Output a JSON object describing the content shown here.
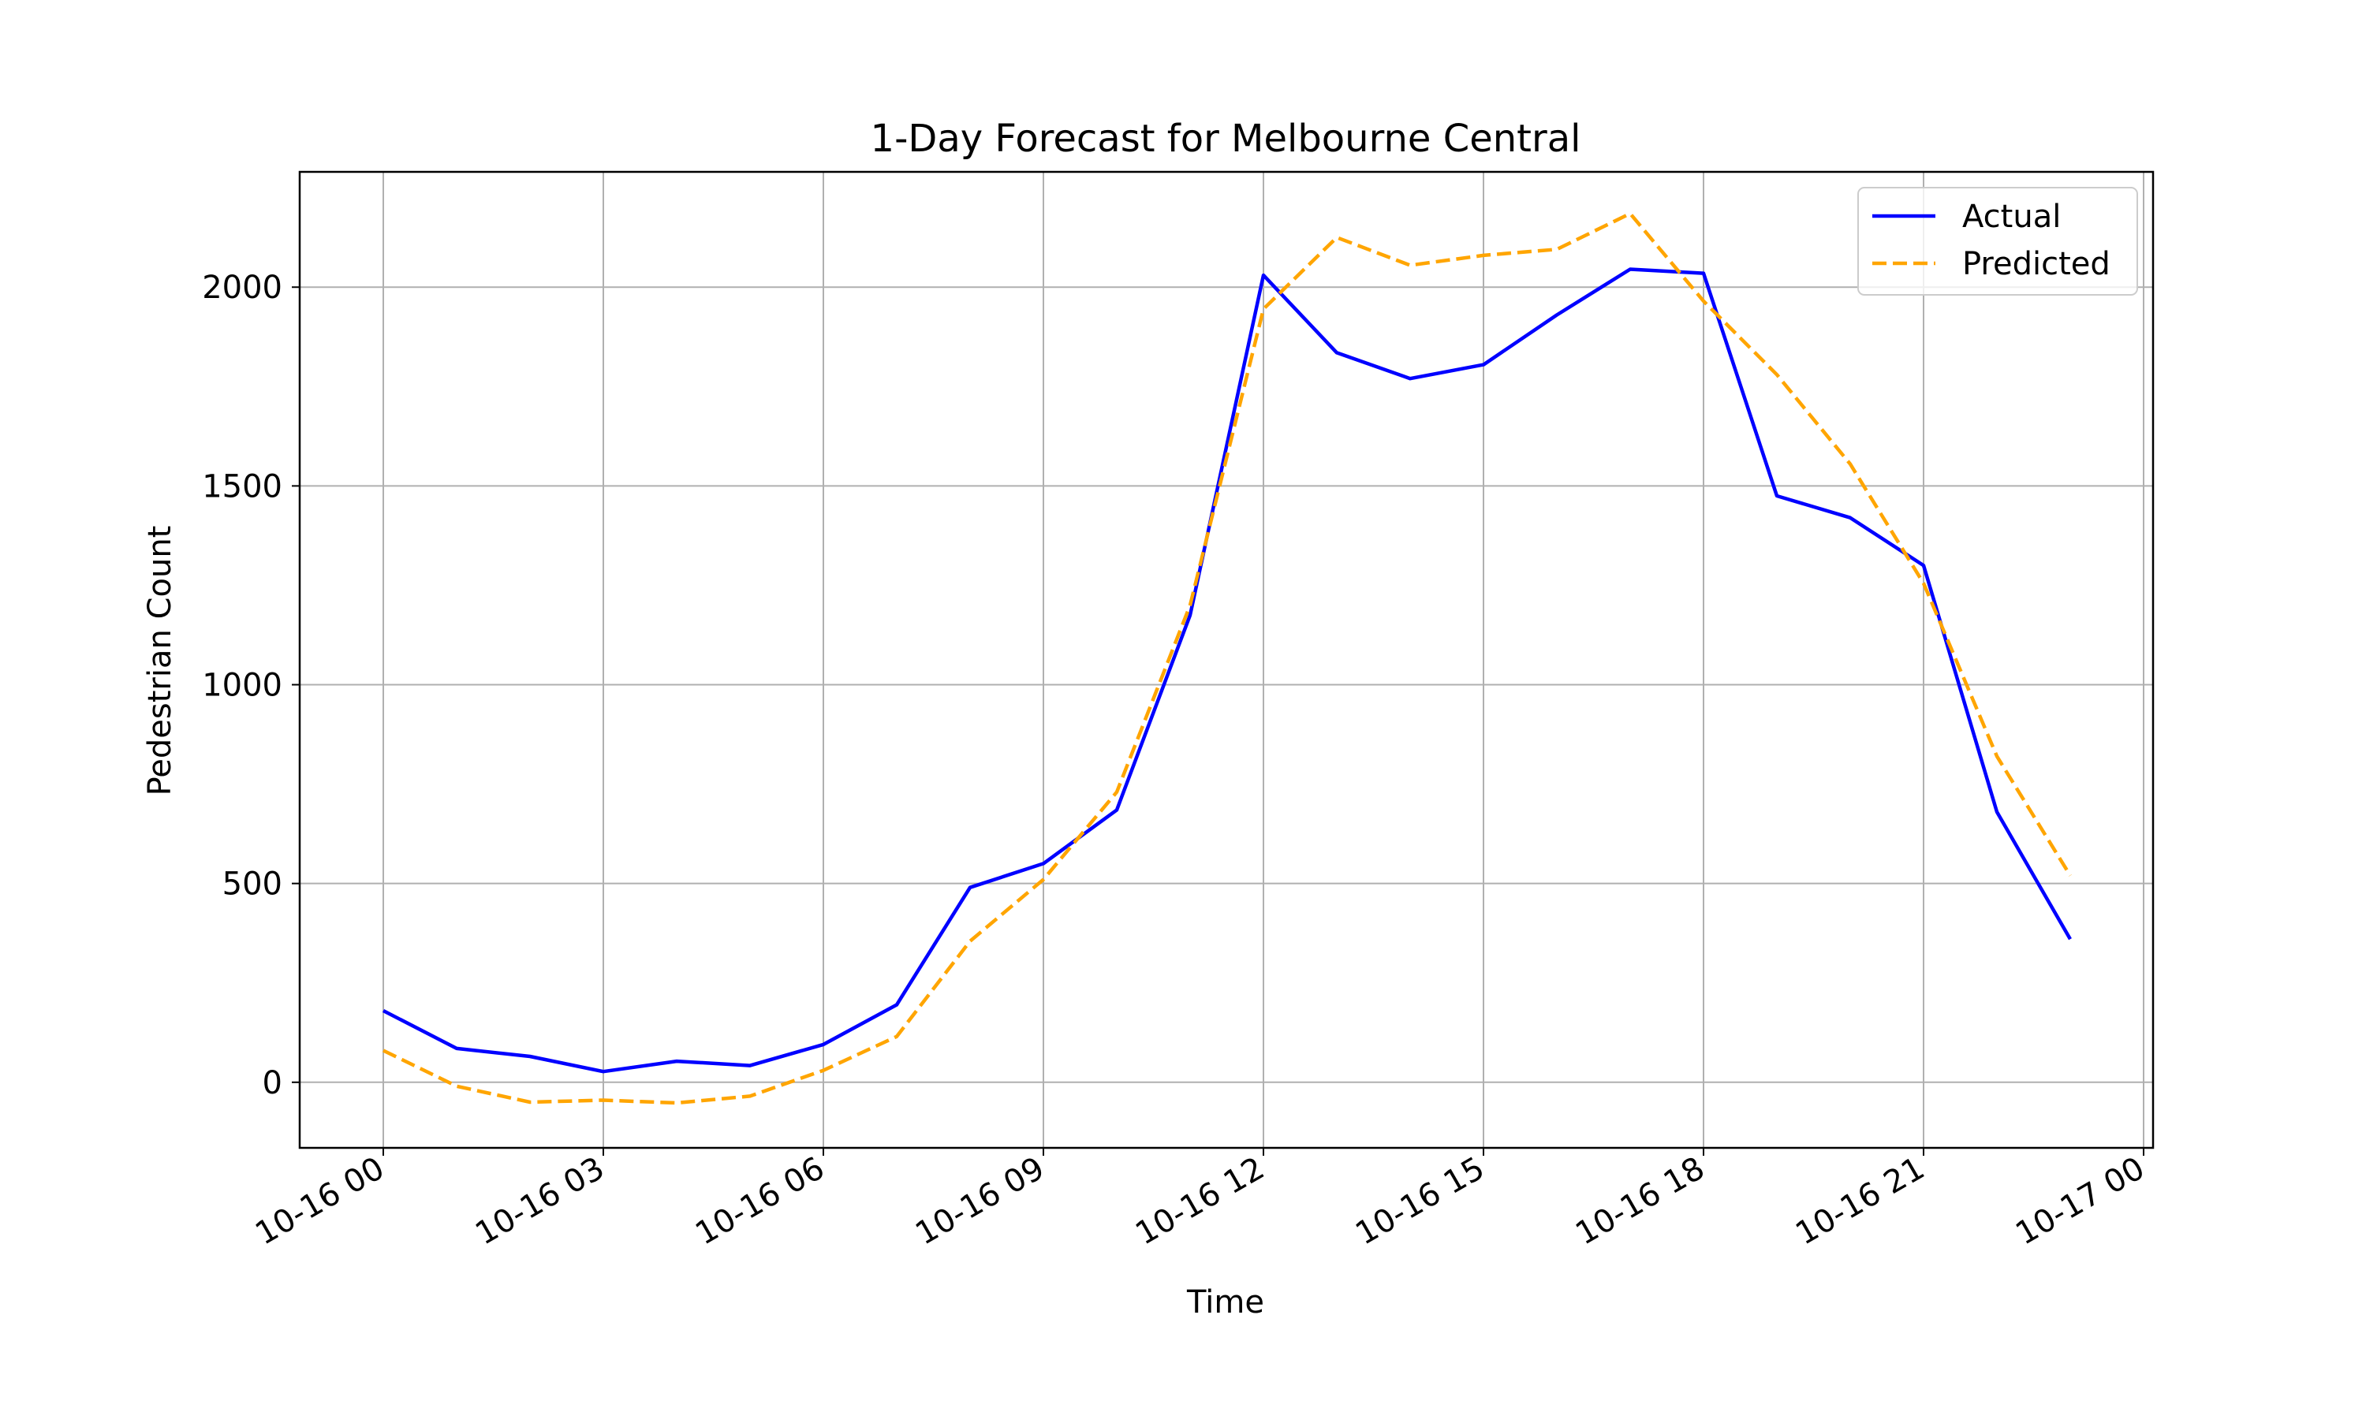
{
  "chart_data": {
    "type": "line",
    "title": "1-Day Forecast for Melbourne Central",
    "xlabel": "Time",
    "ylabel": "Pedestrian Count",
    "x": [
      "00:00",
      "01:00",
      "02:00",
      "03:00",
      "04:00",
      "05:00",
      "06:00",
      "07:00",
      "08:00",
      "09:00",
      "10:00",
      "11:00",
      "12:00",
      "13:00",
      "14:00",
      "15:00",
      "16:00",
      "17:00",
      "18:00",
      "19:00",
      "20:00",
      "21:00",
      "22:00",
      "23:00"
    ],
    "x_ticks": [
      "10-16 00",
      "10-16 03",
      "10-16 06",
      "10-16 09",
      "10-16 12",
      "10-16 15",
      "10-16 18",
      "10-16 21",
      "10-17 00"
    ],
    "y_ticks": [
      "0",
      "500",
      "1000",
      "1500",
      "2000"
    ],
    "ylim": [
      -165,
      2290
    ],
    "grid": true,
    "legend_position": "top-right",
    "series": [
      {
        "name": "Actual",
        "color": "#0000ff",
        "style": "solid",
        "values": [
          180,
          85,
          65,
          27,
          53,
          42,
          95,
          195,
          490,
          550,
          685,
          1175,
          2030,
          1835,
          1770,
          1805,
          1930,
          2045,
          2035,
          1475,
          1420,
          1300,
          680,
          360
        ]
      },
      {
        "name": "Predicted",
        "color": "#ffa500",
        "style": "dashed",
        "values": [
          80,
          -10,
          -50,
          -45,
          -52,
          -35,
          30,
          115,
          355,
          510,
          730,
          1200,
          1945,
          2125,
          2055,
          2080,
          2095,
          2185,
          1965,
          1780,
          1555,
          1255,
          820,
          520
        ]
      }
    ]
  }
}
